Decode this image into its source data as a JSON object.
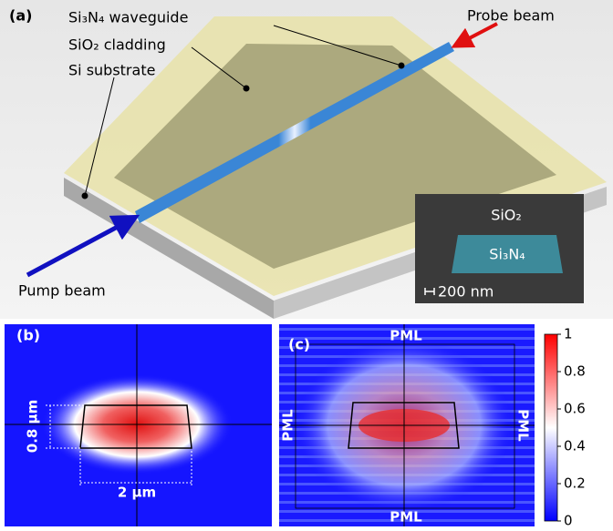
{
  "panel_a": {
    "label": "(a)",
    "annotations": [
      "Si₃N₄ waveguide",
      "SiO₂ cladding",
      "Si substrate"
    ],
    "probe": "Probe beam",
    "pump": "Pump beam",
    "inset": {
      "cladding": "SiO₂",
      "core": "Si₃N₄",
      "scale_bar": "200 nm"
    }
  },
  "panel_b": {
    "label": "(b)",
    "height": "0.8 µm",
    "width": "2 µm"
  },
  "panel_c": {
    "label": "(c)",
    "pml": [
      "PML",
      "PML",
      "PML",
      "PML"
    ]
  },
  "colorbar": {
    "range": [
      0,
      1
    ],
    "ticks": [
      0,
      0.2,
      0.4,
      0.6,
      0.8,
      1
    ]
  }
}
